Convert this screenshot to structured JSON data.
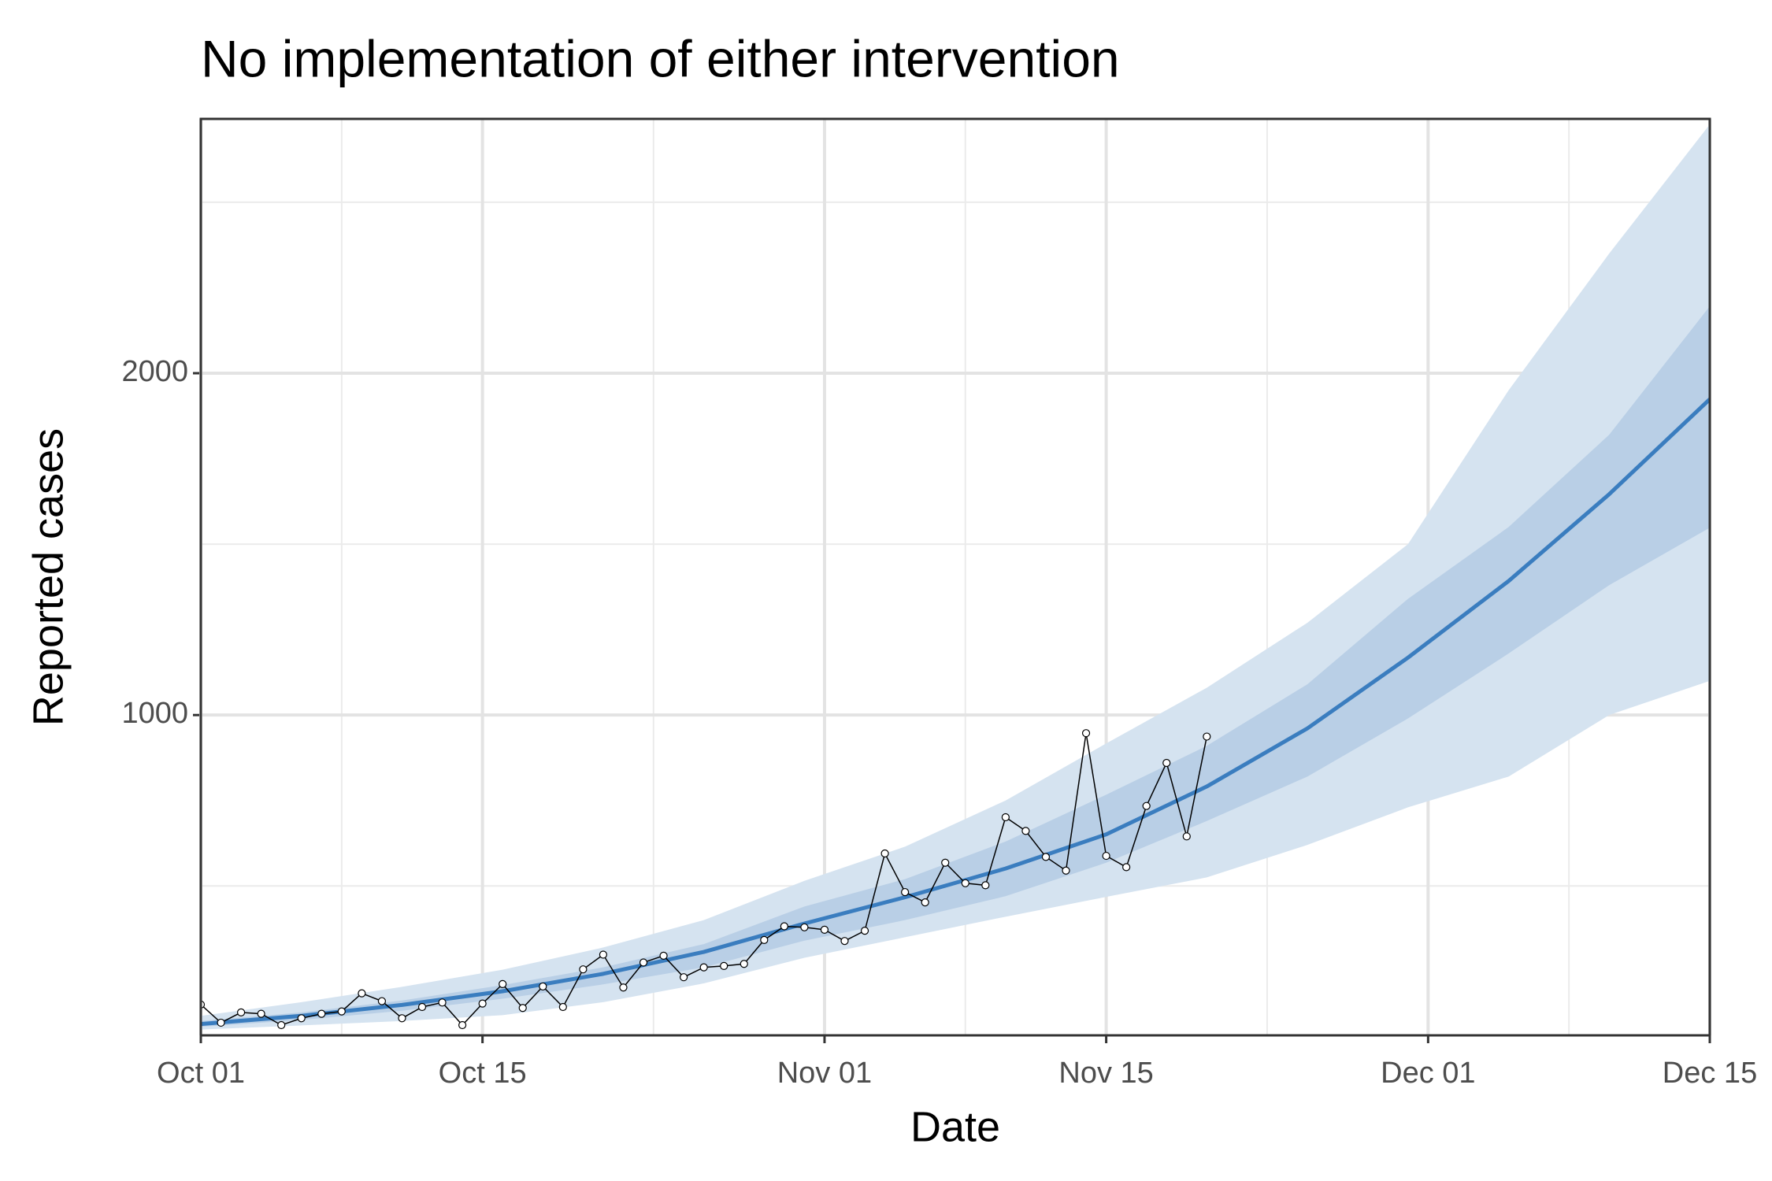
{
  "chart_data": {
    "type": "line",
    "title": "No implementation of either intervention",
    "xlabel": "Date",
    "ylabel": "Reported cases",
    "xlim": [
      "Oct 01",
      "Dec 15"
    ],
    "xticks": [
      "Oct 01",
      "Oct 15",
      "Nov 01",
      "Nov 15",
      "Dec 01",
      "Dec 15"
    ],
    "ylim": [
      63,
      2744
    ],
    "yticks": [
      1000,
      2000
    ],
    "grid": true,
    "observed": {
      "color": "#000000",
      "x": [
        "Oct 01",
        "Oct 02",
        "Oct 03",
        "Oct 04",
        "Oct 05",
        "Oct 06",
        "Oct 07",
        "Oct 08",
        "Oct 09",
        "Oct 10",
        "Oct 11",
        "Oct 12",
        "Oct 13",
        "Oct 14",
        "Oct 15",
        "Oct 16",
        "Oct 17",
        "Oct 18",
        "Oct 19",
        "Oct 20",
        "Oct 21",
        "Oct 22",
        "Oct 23",
        "Oct 24",
        "Oct 25",
        "Oct 26",
        "Oct 27",
        "Oct 28",
        "Oct 29",
        "Oct 30",
        "Oct 31",
        "Nov 01",
        "Nov 02",
        "Nov 03",
        "Nov 04",
        "Nov 05",
        "Nov 06",
        "Nov 07",
        "Nov 08",
        "Nov 09",
        "Nov 10",
        "Nov 11",
        "Nov 12",
        "Nov 13",
        "Nov 14",
        "Nov 15",
        "Nov 16",
        "Nov 17",
        "Nov 18",
        "Nov 19",
        "Nov 20"
      ],
      "values": [
        153,
        100,
        130,
        126,
        93,
        113,
        126,
        133,
        186,
        163,
        113,
        146,
        159,
        93,
        156,
        213,
        143,
        206,
        146,
        256,
        299,
        203,
        276,
        296,
        233,
        262,
        266,
        272,
        342,
        382,
        379,
        372,
        339,
        369,
        595,
        482,
        452,
        568,
        508,
        502,
        701,
        661,
        585,
        545,
        947,
        588,
        555,
        734,
        860,
        645,
        937
      ]
    },
    "projection": {
      "line_color": "#3a7dbf",
      "inner_color": "#b9cfe6",
      "outer_color": "#d5e3f0",
      "x": [
        "Oct 01",
        "Oct 06",
        "Oct 11",
        "Oct 16",
        "Oct 21",
        "Oct 26",
        "Oct 31",
        "Nov 05",
        "Nov 10",
        "Nov 15",
        "Nov 20",
        "Nov 25",
        "Nov 30",
        "Dec 05",
        "Dec 10",
        "Dec 15"
      ],
      "median": [
        96,
        120,
        152,
        192,
        243,
        307,
        390,
        467,
        551,
        651,
        791,
        961,
        1168,
        1392,
        1646,
        1924
      ],
      "inner_lower": [
        88,
        108,
        135,
        170,
        212,
        262,
        340,
        400,
        470,
        568,
        690,
        820,
        990,
        1180,
        1380,
        1548
      ],
      "inner_upper": [
        105,
        130,
        165,
        210,
        262,
        330,
        440,
        520,
        630,
        767,
        910,
        1090,
        1340,
        1550,
        1820,
        2196
      ],
      "outer_lower": [
        80,
        92,
        105,
        122,
        160,
        215,
        290,
        350,
        410,
        468,
        525,
        620,
        730,
        820,
        1000,
        1100
      ],
      "outer_upper": [
        120,
        160,
        205,
        255,
        320,
        400,
        515,
        615,
        750,
        917,
        1080,
        1270,
        1500,
        1950,
        2350,
        2728
      ]
    }
  }
}
